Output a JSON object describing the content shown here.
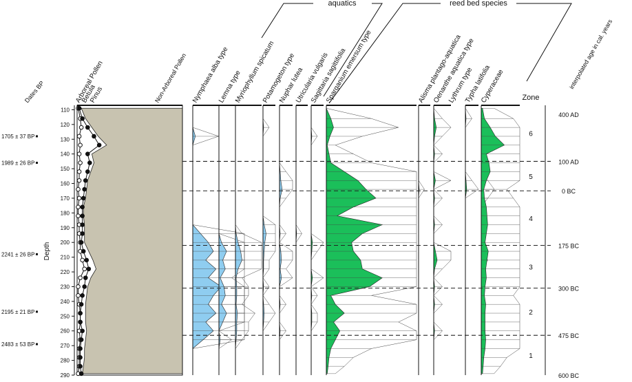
{
  "chart_data": {
    "type": "area",
    "title": "",
    "group_labels": [
      "aquatics",
      "reed bed species"
    ],
    "depth_label": "Depth",
    "depth_ticks": [
      110,
      120,
      130,
      140,
      150,
      160,
      170,
      180,
      190,
      200,
      210,
      220,
      230,
      240,
      250,
      260,
      270,
      280,
      290
    ],
    "dates_label": "Dates BP",
    "dates": [
      {
        "depth": 128,
        "label": "1705 ± 37 BP"
      },
      {
        "depth": 146,
        "label": "1989 ± 26 BP"
      },
      {
        "depth": 208,
        "label": "2241 ± 26 BP"
      },
      {
        "depth": 247,
        "label": "2195 ± 21 BP"
      },
      {
        "depth": 269,
        "label": "2483 ± 53 BP"
      }
    ],
    "zone_label": "Zone",
    "zones": [
      {
        "label": "6",
        "top": 107,
        "bottom": 145
      },
      {
        "label": "5",
        "top": 145,
        "bottom": 165
      },
      {
        "label": "4",
        "top": 165,
        "bottom": 202
      },
      {
        "label": "3",
        "top": 202,
        "bottom": 231
      },
      {
        "label": "2",
        "top": 231,
        "bottom": 263
      },
      {
        "label": "1",
        "top": 263,
        "bottom": 290
      }
    ],
    "age_label": "interpolated age in cal. years",
    "ages": [
      {
        "depth": 113,
        "label": "400 AD"
      },
      {
        "depth": 145,
        "label": "100 AD"
      },
      {
        "depth": 165,
        "label": "0 BC"
      },
      {
        "depth": 202,
        "label": "175 BC"
      },
      {
        "depth": 231,
        "label": "300 BC"
      },
      {
        "depth": 263,
        "label": "475 BC"
      },
      {
        "depth": 290,
        "label": "600 BC"
      }
    ],
    "samples": [
      109,
      116,
      122,
      128,
      134,
      140,
      146,
      152,
      158,
      164,
      170,
      176,
      182,
      188,
      194,
      200,
      206,
      212,
      218,
      224,
      230,
      236,
      242,
      248,
      254,
      260,
      266,
      272,
      278,
      284,
      289
    ],
    "main_panel": {
      "labels": [
        "Arboreal Pollen",
        "Betula",
        "Pinus",
        "Non-Arboreal Pollen"
      ],
      "max": 100,
      "arboreal": [
        4,
        8,
        14,
        20,
        28,
        14,
        16,
        13,
        10,
        9,
        8,
        6,
        6,
        7,
        7,
        7,
        11,
        15,
        18,
        13,
        10,
        9,
        8,
        8,
        8,
        9,
        8,
        7,
        7,
        6,
        5
      ],
      "betula": [
        1,
        3,
        4,
        2,
        3,
        2,
        3,
        2,
        2,
        1,
        2,
        1,
        1,
        2,
        2,
        3,
        3,
        5,
        7,
        3,
        1,
        1,
        2,
        3,
        3,
        2,
        3,
        2,
        2,
        2,
        1
      ],
      "pinus": [
        2,
        5,
        10,
        16,
        21,
        10,
        12,
        10,
        8,
        7,
        6,
        5,
        5,
        5,
        5,
        4,
        6,
        9,
        11,
        8,
        7,
        5,
        4,
        3,
        3,
        5,
        4,
        3,
        3,
        3,
        4
      ]
    },
    "taxa": [
      {
        "name": "Nymphaea alba type",
        "group": "aquatics",
        "max": 20,
        "color": "#8fcdf0",
        "values": [
          0,
          0,
          0,
          1,
          0,
          0,
          0,
          0,
          0,
          0,
          0,
          0,
          0,
          0,
          3,
          6,
          8,
          5,
          9,
          6,
          11,
          8,
          6,
          9,
          5,
          8,
          4,
          0,
          0,
          0,
          0
        ]
      },
      {
        "name": "Lemna type",
        "group": "aquatics",
        "max": 20,
        "color": "#8fcdf0",
        "values": [
          0,
          0,
          0,
          0,
          0,
          0,
          0,
          0,
          0,
          0,
          0,
          0,
          0,
          0,
          0,
          2,
          6,
          3,
          5,
          1,
          4,
          5,
          2,
          6,
          3,
          0,
          1,
          0,
          0,
          0,
          0
        ]
      },
      {
        "name": "Myriophyllum spicatum",
        "group": "aquatics",
        "max": 40,
        "color": "#8fcdf0",
        "values": [
          0,
          0,
          0,
          0,
          0,
          0,
          0,
          0,
          0,
          0,
          0,
          0,
          0,
          0,
          1,
          4,
          8,
          10,
          4,
          1,
          2,
          2,
          1,
          3,
          2,
          2,
          1,
          0,
          0,
          0,
          0
        ]
      },
      {
        "name": "Potamogeton type",
        "group": "aquatics",
        "max": 20,
        "color": "#8fcdf0",
        "values": [
          0,
          0,
          1,
          0,
          0,
          0,
          0,
          0,
          0,
          0,
          0,
          0,
          0,
          2,
          5,
          3,
          2,
          1,
          1,
          0,
          1,
          0,
          1,
          2,
          1,
          0,
          0,
          0,
          0,
          0,
          0
        ]
      },
      {
        "name": "Nuphar lutea",
        "group": "aquatics",
        "max": 20,
        "color": "#8fcdf0",
        "values": [
          0,
          0,
          0,
          0,
          0,
          0,
          0,
          1,
          2,
          4,
          1,
          0,
          0,
          0,
          1,
          0,
          2,
          3,
          1,
          3,
          0,
          0,
          1,
          0,
          0,
          1,
          0,
          0,
          0,
          0,
          0
        ]
      },
      {
        "name": "Utricularia vulgaris",
        "group": "aquatics",
        "max": 20,
        "color": "#8fcdf0",
        "values": [
          0,
          0,
          0,
          0,
          0,
          0,
          0,
          0,
          0,
          0,
          0,
          0,
          0,
          0,
          1,
          0,
          0,
          0,
          0,
          0,
          0,
          0,
          0,
          0,
          0,
          0,
          0,
          0,
          0,
          0,
          0
        ]
      },
      {
        "name": "Sagittaria sagittifolia",
        "group": "reed bed species",
        "max": 20,
        "color": "#1bbf5a",
        "values": [
          0,
          0,
          0,
          1,
          0,
          0,
          0,
          0,
          0,
          0,
          0,
          0,
          0,
          0,
          0,
          2,
          1,
          0,
          0,
          2,
          0,
          1,
          0,
          1,
          1,
          0,
          0,
          0,
          0,
          0,
          0
        ]
      },
      {
        "name": "Sparganium emersum type",
        "group": "reed bed species",
        "max": 100,
        "color": "#1bbf5a",
        "values": [
          0,
          5,
          8,
          4,
          1,
          3,
          5,
          20,
          35,
          44,
          55,
          30,
          12,
          62,
          40,
          28,
          30,
          38,
          40,
          62,
          48,
          5,
          10,
          20,
          8,
          15,
          10,
          5,
          3,
          2,
          1
        ]
      },
      {
        "name": "Alisma plantago-aquatica",
        "group": "reed bed species",
        "max": 20,
        "color": "#1bbf5a",
        "values": [
          0,
          0,
          0,
          0,
          0,
          0,
          0,
          0,
          0,
          1,
          0,
          0,
          0,
          0,
          0,
          0,
          0,
          0,
          0,
          0,
          0,
          0,
          0,
          0,
          0,
          0,
          0,
          0,
          0,
          0,
          0
        ]
      },
      {
        "name": "Oenanthe aquatica type",
        "group": "reed bed species",
        "max": 20,
        "color": "#1bbf5a",
        "values": [
          0,
          1,
          3,
          1,
          0,
          1,
          0,
          0,
          2,
          0,
          1,
          0,
          0,
          1,
          0,
          0,
          2,
          4,
          1,
          0,
          1,
          0,
          1,
          0,
          0,
          1,
          0,
          0,
          0,
          0,
          0
        ]
      },
      {
        "name": "Lythrum type",
        "group": "reed bed species",
        "max": 20,
        "color": "#1bbf5a",
        "values": [
          0,
          1,
          0,
          0,
          0,
          0,
          0,
          0,
          1,
          2,
          0,
          0,
          0,
          0,
          0,
          0,
          0,
          0,
          0,
          0,
          0,
          0,
          0,
          0,
          0,
          0,
          0,
          0,
          0,
          0,
          0
        ]
      },
      {
        "name": "Typha latifolia",
        "group": "reed bed species",
        "max": 20,
        "color": "#1bbf5a",
        "values": [
          0,
          0,
          1,
          0,
          0,
          0,
          1,
          0,
          1,
          2,
          1,
          0,
          0,
          0,
          0,
          0,
          0,
          1,
          0,
          0,
          0,
          0,
          0,
          0,
          0,
          0,
          0,
          0,
          0,
          0,
          0
        ]
      },
      {
        "name": "Cyperaceae",
        "group": "reed bed species",
        "max": 60,
        "color": "#1bbf5a",
        "values": [
          2,
          5,
          14,
          22,
          36,
          8,
          12,
          14,
          8,
          4,
          5,
          8,
          9,
          10,
          8,
          6,
          11,
          9,
          7,
          8,
          6,
          5,
          7,
          6,
          6,
          6,
          7,
          6,
          4,
          3,
          2
        ]
      }
    ]
  }
}
